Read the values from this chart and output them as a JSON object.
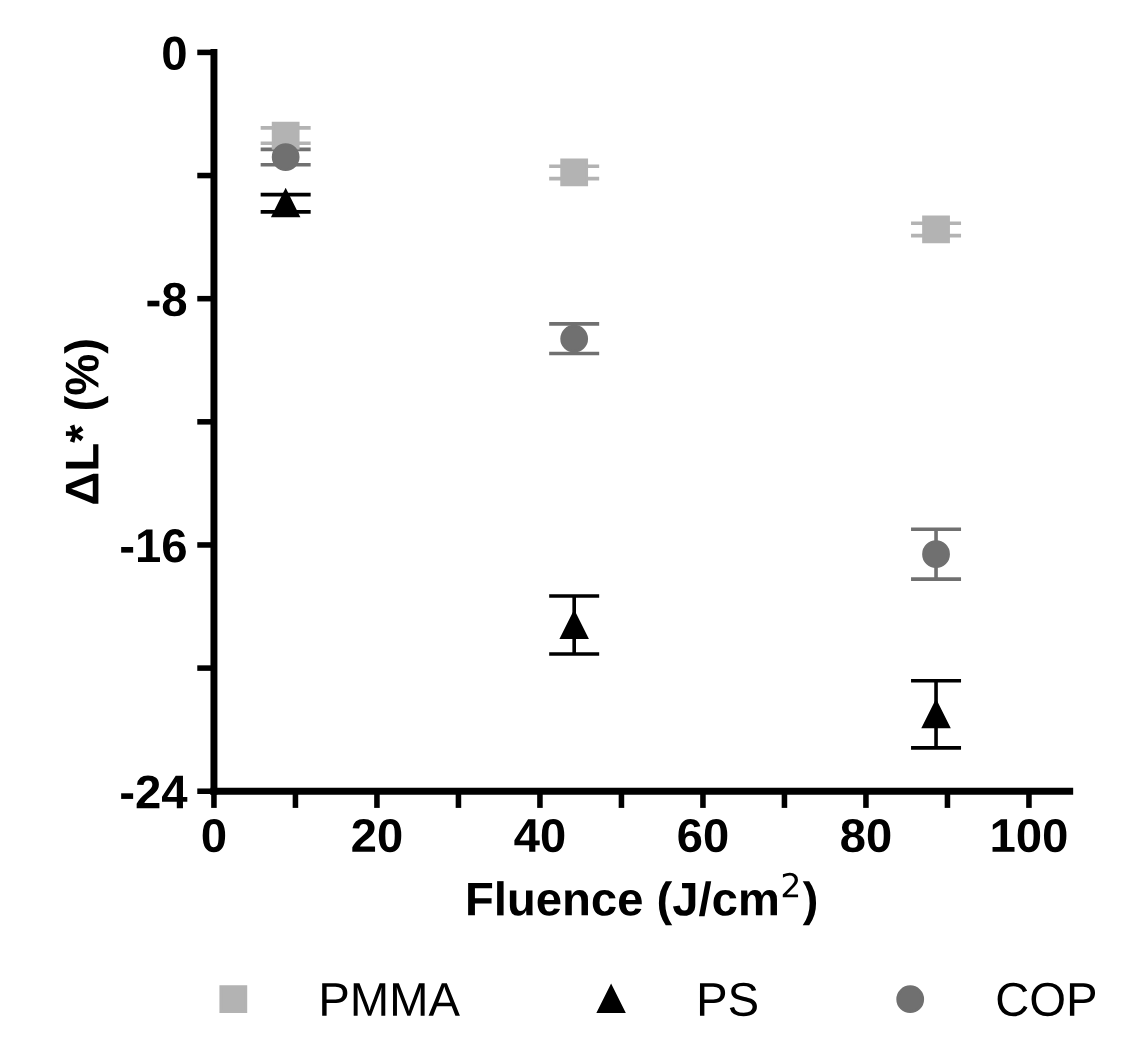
{
  "chart_data": {
    "type": "scatter",
    "xlabel": "Fluence (J/cm$^{2}$)",
    "ylabel": "ΔL* (%)",
    "xlim": [
      0,
      105
    ],
    "ylim": [
      -24,
      0
    ],
    "xticks": [
      0,
      {
        "value": 10,
        "label": null
      },
      20,
      {
        "value": 30,
        "label": null
      },
      40,
      {
        "value": 50,
        "label": null
      },
      60,
      {
        "value": 70,
        "label": null
      },
      80,
      {
        "value": 90,
        "label": null
      },
      100
    ],
    "yticks": [
      -24,
      {
        "value": -20,
        "label": null
      },
      -16,
      {
        "value": -12,
        "label": null
      },
      -8,
      {
        "value": -4,
        "label": null
      },
      0
    ],
    "grid": false,
    "legend": "bottom",
    "series": [
      {
        "name": "PMMA",
        "color": "#b3b3b3",
        "marker": "square",
        "x": [
          8.8,
          44.2,
          88.6
        ],
        "values": [
          -2.7,
          -3.9,
          -5.75
        ],
        "errors": [
          0.25,
          0.2,
          0.2
        ]
      },
      {
        "name": "PS",
        "color": "#000000",
        "marker": "triangle",
        "x": [
          8.8,
          44.2,
          88.6
        ],
        "values": [
          -4.9,
          -18.6,
          -21.5
        ],
        "errors": [
          0.28,
          0.94,
          1.09
        ]
      },
      {
        "name": "COP",
        "color": "#707070",
        "marker": "circle",
        "x": [
          8.8,
          44.2,
          88.6
        ],
        "values": [
          -3.4,
          -9.3,
          -16.3
        ],
        "errors": [
          0.25,
          0.48,
          0.81
        ]
      }
    ]
  }
}
